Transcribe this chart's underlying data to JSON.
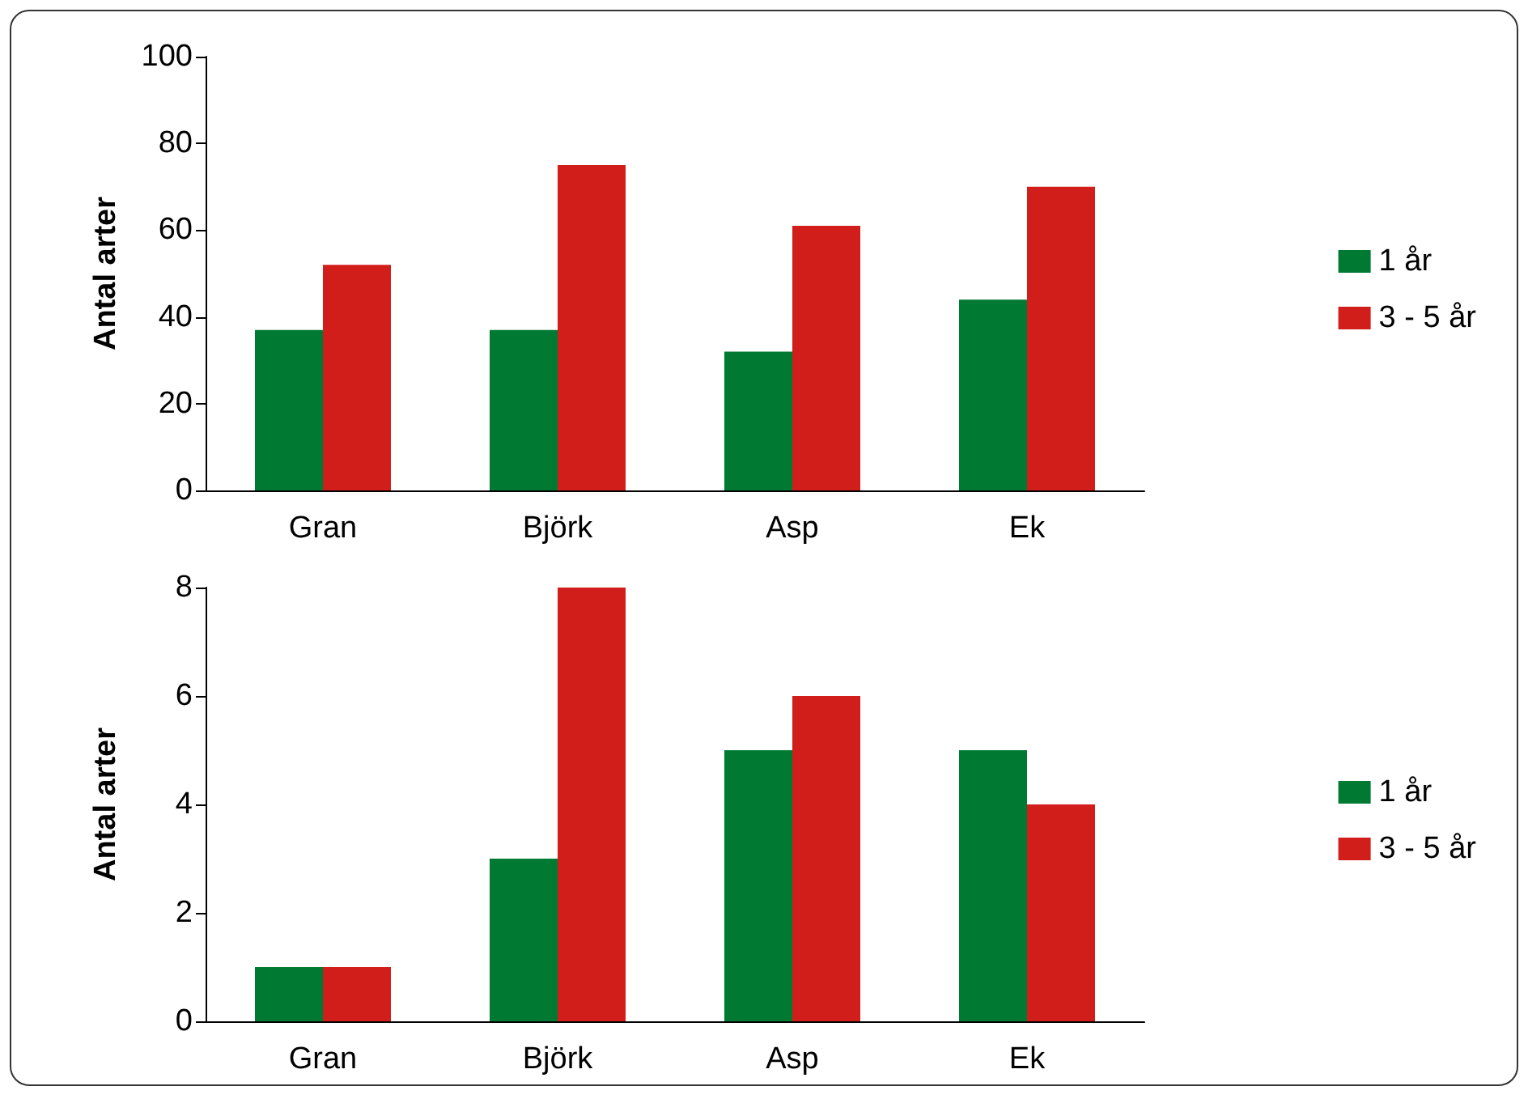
{
  "chart_data": [
    {
      "type": "bar",
      "ylabel": "Antal arter",
      "categories": [
        "Gran",
        "Björk",
        "Asp",
        "Ek"
      ],
      "series": [
        {
          "name": "1 år",
          "color": "#007a33",
          "values": [
            37,
            37,
            32,
            44
          ]
        },
        {
          "name": "3 - 5 år",
          "color": "#d21e1b",
          "values": [
            52,
            75,
            61,
            70
          ]
        }
      ],
      "ylim": [
        0,
        100
      ],
      "yticks": [
        0,
        20,
        40,
        60,
        80,
        100
      ],
      "grid": false,
      "legend": "right"
    },
    {
      "type": "bar",
      "ylabel": "Antal arter",
      "categories": [
        "Gran",
        "Björk",
        "Asp",
        "Ek"
      ],
      "series": [
        {
          "name": "1 år",
          "color": "#007a33",
          "values": [
            1,
            3,
            5,
            5
          ]
        },
        {
          "name": "3 - 5 år",
          "color": "#d21e1b",
          "values": [
            1,
            8,
            6,
            4
          ]
        }
      ],
      "ylim": [
        0,
        8
      ],
      "yticks": [
        0,
        2,
        4,
        6,
        8
      ],
      "grid": false,
      "legend": "right"
    }
  ]
}
